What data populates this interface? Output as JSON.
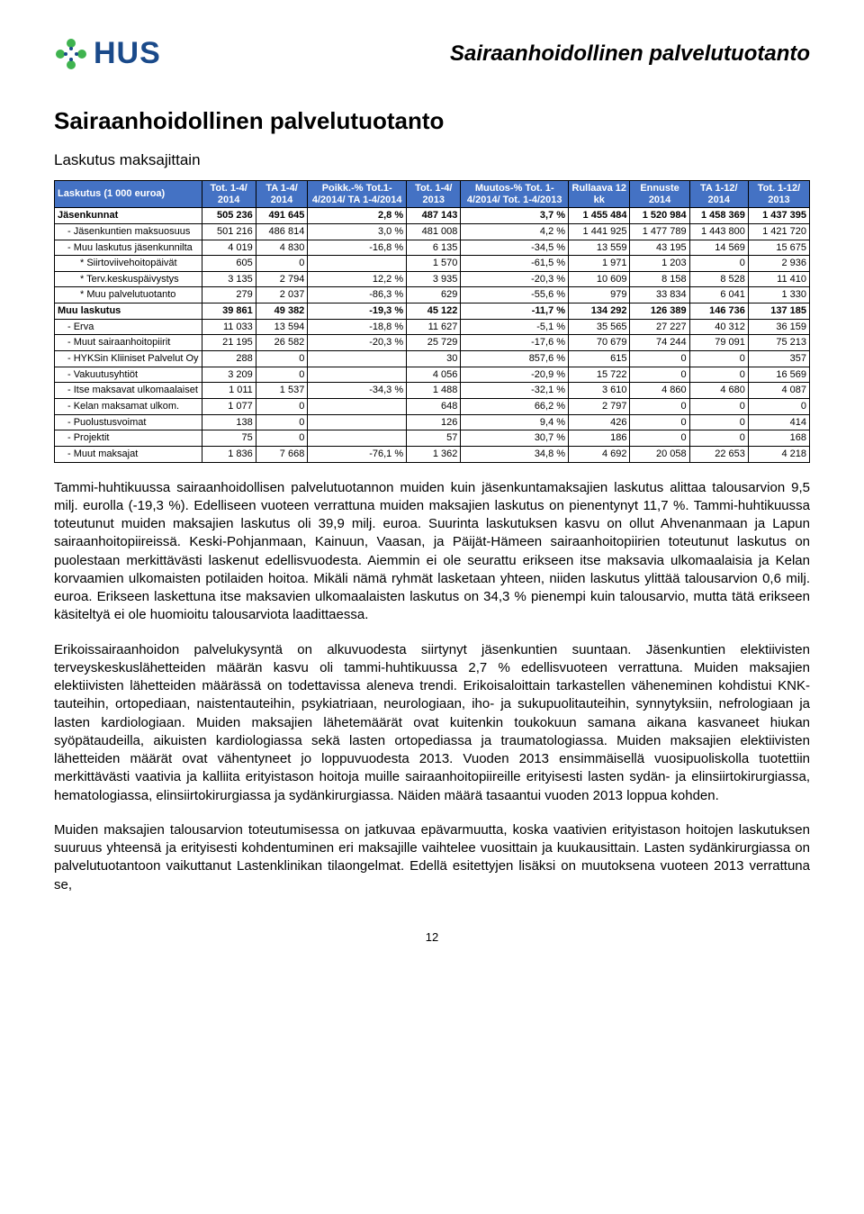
{
  "logo_text": "HUS",
  "doc_header": "Sairaanhoidollinen palvelutuotanto",
  "section_title": "Sairaanhoidollinen palvelutuotanto",
  "subsection_title": "Laskutus maksajittain",
  "table": {
    "colors": {
      "header_bg": "#4472c4",
      "header_fg": "#ffffff",
      "border": "#000000"
    },
    "headers": [
      "Laskutus (1 000 euroa)",
      "Tot. 1-4/ 2014",
      "TA 1-4/ 2014",
      "Poikk.-% Tot.1-4/2014/ TA 1-4/2014",
      "Tot. 1-4/ 2013",
      "Muutos-% Tot. 1-4/2014/ Tot. 1-4/2013",
      "Rullaava 12 kk",
      "Ennuste 2014",
      "TA 1-12/ 2014",
      "Tot. 1-12/ 2013"
    ],
    "rows": [
      {
        "bold": true,
        "indent": 0,
        "label": "Jäsenkunnat",
        "c": [
          "505 236",
          "491 645",
          "2,8 %",
          "487 143",
          "3,7 %",
          "1 455 484",
          "1 520 984",
          "1 458 369",
          "1 437 395"
        ]
      },
      {
        "bold": false,
        "indent": 1,
        "label": "- Jäsenkuntien maksuosuus",
        "c": [
          "501 216",
          "486 814",
          "3,0 %",
          "481 008",
          "4,2 %",
          "1 441 925",
          "1 477 789",
          "1 443 800",
          "1 421 720"
        ]
      },
      {
        "bold": false,
        "indent": 1,
        "label": "- Muu laskutus jäsenkunnilta",
        "c": [
          "4 019",
          "4 830",
          "-16,8 %",
          "6 135",
          "-34,5 %",
          "13 559",
          "43 195",
          "14 569",
          "15 675"
        ]
      },
      {
        "bold": false,
        "indent": 2,
        "label": "* Siirtoviivehoitopäivät",
        "c": [
          "605",
          "0",
          "",
          "1 570",
          "-61,5 %",
          "1 971",
          "1 203",
          "0",
          "2 936"
        ]
      },
      {
        "bold": false,
        "indent": 2,
        "label": "* Terv.keskuspäivystys",
        "c": [
          "3 135",
          "2 794",
          "12,2 %",
          "3 935",
          "-20,3 %",
          "10 609",
          "8 158",
          "8 528",
          "11 410"
        ]
      },
      {
        "bold": false,
        "indent": 2,
        "label": "* Muu palvelutuotanto",
        "c": [
          "279",
          "2 037",
          "-86,3 %",
          "629",
          "-55,6 %",
          "979",
          "33 834",
          "6 041",
          "1 330"
        ]
      },
      {
        "bold": true,
        "indent": 0,
        "label": "Muu laskutus",
        "c": [
          "39 861",
          "49 382",
          "-19,3 %",
          "45 122",
          "-11,7 %",
          "134 292",
          "126 389",
          "146 736",
          "137 185"
        ]
      },
      {
        "bold": false,
        "indent": 1,
        "label": "- Erva",
        "c": [
          "11 033",
          "13 594",
          "-18,8 %",
          "11 627",
          "-5,1 %",
          "35 565",
          "27 227",
          "40 312",
          "36 159"
        ]
      },
      {
        "bold": false,
        "indent": 1,
        "label": "- Muut sairaanhoitopiirit",
        "c": [
          "21 195",
          "26 582",
          "-20,3 %",
          "25 729",
          "-17,6 %",
          "70 679",
          "74 244",
          "79 091",
          "75 213"
        ]
      },
      {
        "bold": false,
        "indent": 1,
        "label": "- HYKSin Kliiniset Palvelut Oy",
        "c": [
          "288",
          "0",
          "",
          "30",
          "857,6 %",
          "615",
          "0",
          "0",
          "357"
        ]
      },
      {
        "bold": false,
        "indent": 1,
        "label": "- Vakuutusyhtiöt",
        "c": [
          "3 209",
          "0",
          "",
          "4 056",
          "-20,9 %",
          "15 722",
          "0",
          "0",
          "16 569"
        ]
      },
      {
        "bold": false,
        "indent": 1,
        "label": "- Itse maksavat ulkomaalaiset",
        "c": [
          "1 011",
          "1 537",
          "-34,3 %",
          "1 488",
          "-32,1 %",
          "3 610",
          "4 860",
          "4 680",
          "4 087"
        ]
      },
      {
        "bold": false,
        "indent": 1,
        "label": "- Kelan maksamat ulkom.",
        "c": [
          "1 077",
          "0",
          "",
          "648",
          "66,2 %",
          "2 797",
          "0",
          "0",
          "0"
        ]
      },
      {
        "bold": false,
        "indent": 1,
        "label": "- Puolustusvoimat",
        "c": [
          "138",
          "0",
          "",
          "126",
          "9,4 %",
          "426",
          "0",
          "0",
          "414"
        ]
      },
      {
        "bold": false,
        "indent": 1,
        "label": "- Projektit",
        "c": [
          "75",
          "0",
          "",
          "57",
          "30,7 %",
          "186",
          "0",
          "0",
          "168"
        ]
      },
      {
        "bold": false,
        "indent": 1,
        "label": "- Muut maksajat",
        "c": [
          "1 836",
          "7 668",
          "-76,1 %",
          "1 362",
          "34,8 %",
          "4 692",
          "20 058",
          "22 653",
          "4 218"
        ]
      }
    ]
  },
  "para1": "Tammi-huhtikuussa sairaanhoidollisen palvelutuotannon muiden kuin jäsenkuntamaksajien laskutus alittaa talousarvion 9,5 milj. eurolla (-19,3 %). Edelliseen vuoteen verrattuna muiden maksajien laskutus on pienentynyt 11,7 %. Tammi-huhtikuussa toteutunut muiden maksajien laskutus oli 39,9 milj. euroa. Suurinta laskutuksen kasvu on ollut Ahvenanmaan ja Lapun sairaanhoitopiireissä. Keski-Pohjanmaan, Kainuun, Vaasan, ja Päijät-Hämeen sairaanhoitopiirien toteutunut laskutus on puolestaan merkittävästi laskenut edellisvuodesta. Aiemmin ei ole seurattu erikseen itse maksavia ulkomaalaisia ja Kelan korvaamien ulkomaisten potilaiden hoitoa. Mikäli nämä ryhmät lasketaan yhteen, niiden laskutus ylittää talousarvion 0,6 milj. euroa. Erikseen laskettuna itse maksavien ulkomaalaisten laskutus on 34,3 % pienempi kuin talousarvio, mutta tätä erikseen käsiteltyä ei ole huomioitu talousarviota laadittaessa.",
  "para2": "Erikoissairaanhoidon palvelukysyntä on alkuvuodesta siirtynyt jäsenkuntien suuntaan. Jäsenkuntien elektiivisten terveyskeskuslähetteiden määrän kasvu oli tammi-huhtikuussa 2,7 % edellisvuoteen verrattuna. Muiden maksajien elektiivisten lähetteiden määrässä on todettavissa aleneva trendi. Erikoisaloittain tarkastellen väheneminen kohdistui KNK-tauteihin, ortopediaan, naistentauteihin, psykiatriaan, neurologiaan, iho- ja sukupuolitauteihin, synnytyksiin, nefrologiaan ja lasten kardiologiaan. Muiden maksajien lähetemäärät ovat kuitenkin toukokuun samana aikana kasvaneet hiukan syöpätaudeilla, aikuisten kardiologiassa sekä lasten ortopediassa ja traumatologiassa. Muiden maksajien elektiivisten lähetteiden määrät ovat vähentyneet jo loppuvuodesta 2013. Vuoden 2013 ensimmäisellä vuosipuoliskolla tuotettiin merkittävästi vaativia ja kalliita erityistason hoitoja muille sairaanhoitopiireille erityisesti lasten sydän- ja elinsiirtokirurgiassa, hematologiassa, elinsiirtokirurgiassa ja sydänkirurgiassa. Näiden määrä tasaantui vuoden 2013 loppua kohden.",
  "para3": "Muiden maksajien talousarvion toteutumisessa on jatkuvaa epävarmuutta, koska vaativien erityistason hoitojen laskutuksen suuruus yhteensä ja erityisesti kohdentuminen eri maksajille vaihtelee vuosittain ja kuukausittain. Lasten sydänkirurgiassa on palvelutuotantoon vaikuttanut Lastenklinikan tilaongelmat. Edellä esitettyjen lisäksi on muutoksena vuoteen 2013 verrattuna se,",
  "page_number": "12"
}
